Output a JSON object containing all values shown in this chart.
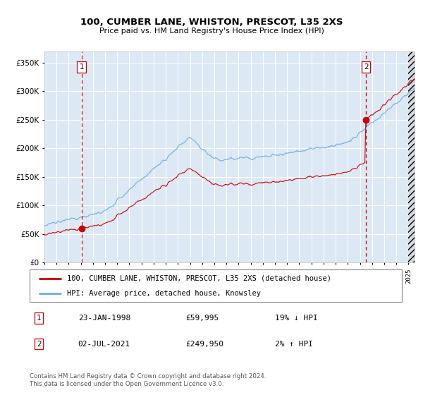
{
  "title": "100, CUMBER LANE, WHISTON, PRESCOT, L35 2XS",
  "subtitle": "Price paid vs. HM Land Registry's House Price Index (HPI)",
  "legend_line1": "100, CUMBER LANE, WHISTON, PRESCOT, L35 2XS (detached house)",
  "legend_line2": "HPI: Average price, detached house, Knowsley",
  "annotation1_date": "23-JAN-1998",
  "annotation1_price": "£59,995",
  "annotation1_hpi": "19% ↓ HPI",
  "annotation2_date": "02-JUL-2021",
  "annotation2_price": "£249,950",
  "annotation2_hpi": "2% ↑ HPI",
  "footer": "Contains HM Land Registry data © Crown copyright and database right 2024.\nThis data is licensed under the Open Government Licence v3.0.",
  "hpi_color": "#6baed6",
  "price_color": "#cc0000",
  "dot_color": "#cc0000",
  "vline_color": "#cc0000",
  "plot_bg": "#dce9f5",
  "grid_color": "#ffffff",
  "ylim": [
    0,
    370000
  ],
  "yticks": [
    0,
    50000,
    100000,
    150000,
    200000,
    250000,
    300000,
    350000
  ],
  "xlim_start": 1995.0,
  "xlim_end": 2025.5,
  "sale1_x": 1998.06,
  "sale1_y": 59995,
  "sale2_x": 2021.5,
  "sale2_y": 249950
}
